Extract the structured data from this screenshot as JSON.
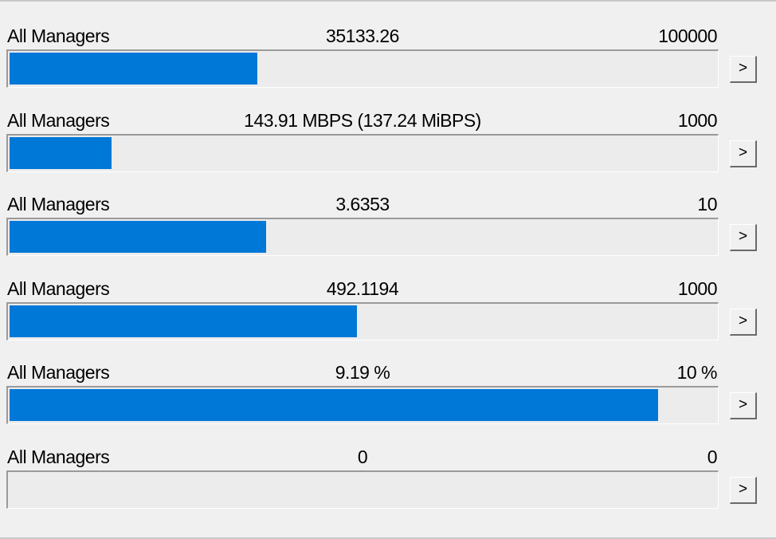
{
  "rows": [
    {
      "label": "All Managers",
      "value": 35133.26,
      "max": 100000,
      "button": ">"
    },
    {
      "label": "All Managers",
      "value": 143.91,
      "value_label": "143.91 MBPS (137.24 MiBPS)",
      "max": 1000,
      "button": ">"
    },
    {
      "label": "All Managers",
      "value": 3.6353,
      "max": 10,
      "button": ">"
    },
    {
      "label": "All Managers",
      "value": 492.1194,
      "max": 1000,
      "button": ">"
    },
    {
      "label": "All Managers",
      "value": 9.19,
      "value_label": "9.19 %",
      "max": 10,
      "max_label": "10 %",
      "button": ">"
    },
    {
      "label": "All Managers",
      "value": 0,
      "max": 0,
      "button": ">"
    }
  ]
}
